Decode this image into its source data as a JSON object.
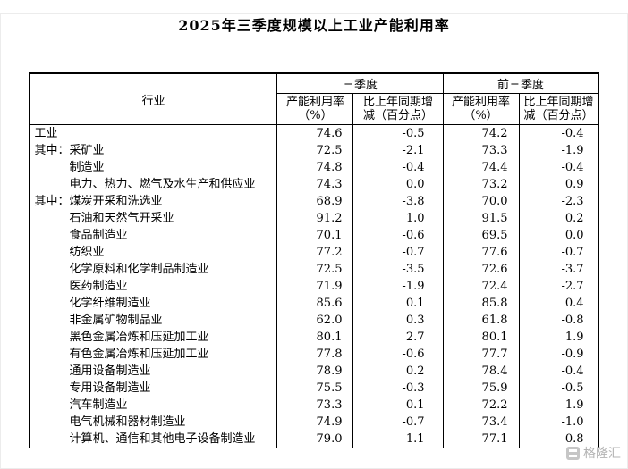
{
  "chart_data": {
    "type": "table",
    "title": "2025年三季度规模以上工业产能利用率",
    "columns": {
      "industry": "行业",
      "groups": [
        "三季度",
        "前三季度"
      ]
    },
    "sub_headers": [
      "产能利用率\n（%）",
      "比上年同期增\n减（百分点）",
      "产能利用率\n（%）",
      "比上年同期增\n减（百分点）"
    ],
    "rows": [
      {
        "industry": "工业",
        "indent": 0,
        "values": [
          "74.6",
          "-0.5",
          "74.2",
          "-0.4"
        ]
      },
      {
        "industry": "其中：采矿业",
        "indent": 0,
        "values": [
          "72.5",
          "-2.1",
          "73.3",
          "-1.9"
        ]
      },
      {
        "industry": "制造业",
        "indent": 1,
        "values": [
          "74.8",
          "-0.4",
          "74.4",
          "-0.4"
        ]
      },
      {
        "industry": "电力、热力、燃气及水生产和供应业",
        "indent": 1,
        "values": [
          "74.3",
          "0.0",
          "73.2",
          "0.9"
        ]
      },
      {
        "industry": "其中：煤炭开采和洗选业",
        "indent": 0,
        "values": [
          "68.9",
          "-3.8",
          "70.0",
          "-2.3"
        ]
      },
      {
        "industry": "石油和天然气开采业",
        "indent": 1,
        "values": [
          "91.2",
          "1.0",
          "91.5",
          "0.2"
        ]
      },
      {
        "industry": "食品制造业",
        "indent": 1,
        "values": [
          "70.1",
          "-0.6",
          "69.5",
          "0.0"
        ]
      },
      {
        "industry": "纺织业",
        "indent": 1,
        "values": [
          "77.2",
          "-0.7",
          "77.6",
          "-0.7"
        ]
      },
      {
        "industry": "化学原料和化学制品制造业",
        "indent": 1,
        "values": [
          "72.5",
          "-3.5",
          "72.6",
          "-3.7"
        ]
      },
      {
        "industry": "医药制造业",
        "indent": 1,
        "values": [
          "71.9",
          "-1.9",
          "72.4",
          "-2.7"
        ]
      },
      {
        "industry": "化学纤维制造业",
        "indent": 1,
        "values": [
          "85.6",
          "0.1",
          "85.8",
          "0.4"
        ]
      },
      {
        "industry": "非金属矿物制品业",
        "indent": 1,
        "values": [
          "62.0",
          "0.3",
          "61.8",
          "-0.8"
        ]
      },
      {
        "industry": "黑色金属冶炼和压延加工业",
        "indent": 1,
        "values": [
          "80.1",
          "2.7",
          "80.1",
          "1.9"
        ]
      },
      {
        "industry": "有色金属冶炼和压延加工业",
        "indent": 1,
        "values": [
          "77.8",
          "-0.6",
          "77.7",
          "-0.9"
        ]
      },
      {
        "industry": "通用设备制造业",
        "indent": 1,
        "values": [
          "78.9",
          "0.2",
          "78.4",
          "-0.4"
        ]
      },
      {
        "industry": "专用设备制造业",
        "indent": 1,
        "values": [
          "75.5",
          "-0.3",
          "75.9",
          "-0.5"
        ]
      },
      {
        "industry": "汽车制造业",
        "indent": 1,
        "values": [
          "73.3",
          "0.1",
          "72.2",
          "1.9"
        ]
      },
      {
        "industry": "电气机械和器材制造业",
        "indent": 1,
        "values": [
          "74.9",
          "-0.7",
          "73.4",
          "-1.0"
        ]
      },
      {
        "industry": "计算机、通信和其他电子设备制造业",
        "indent": 1,
        "values": [
          "79.0",
          "1.1",
          "77.1",
          "0.8"
        ]
      }
    ]
  },
  "watermark": {
    "text": "格隆汇"
  }
}
